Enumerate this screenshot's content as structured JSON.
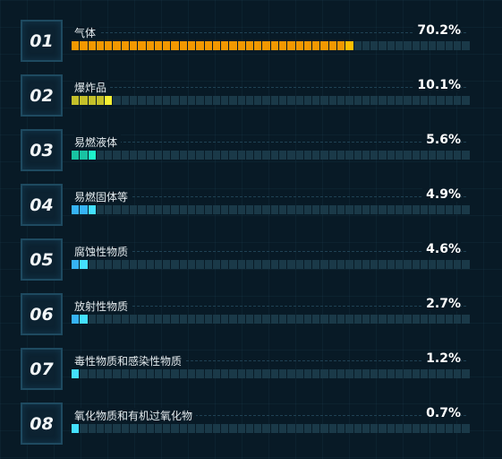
{
  "items": [
    {
      "rank": "01",
      "label": "气体",
      "value": "70.2%",
      "percent": 70.2,
      "color": "#f39800"
    },
    {
      "rank": "02",
      "label": "爆炸品",
      "value": "10.1%",
      "percent": 10.1,
      "color": "#c4c02a"
    },
    {
      "rank": "03",
      "label": "易燃液体",
      "value": "5.6%",
      "percent": 5.6,
      "color": "#18c3a2"
    },
    {
      "rank": "04",
      "label": "易燃固体等",
      "value": "4.9%",
      "percent": 4.9,
      "color": "#36b3f5"
    },
    {
      "rank": "05",
      "label": "腐蚀性物质",
      "value": "4.6%",
      "percent": 4.6,
      "color": "#36b3f5"
    },
    {
      "rank": "06",
      "label": "放射性物质",
      "value": "2.7%",
      "percent": 2.7,
      "color": "#36b3f5"
    },
    {
      "rank": "07",
      "label": "毒性物质和感染性物质",
      "value": "1.2%",
      "percent": 1.2,
      "color": "#36b3f5"
    },
    {
      "rank": "08",
      "label": "氧化物质和有机过氧化物",
      "value": "0.7%",
      "percent": 0.7,
      "color": "#36b3f5"
    }
  ]
}
